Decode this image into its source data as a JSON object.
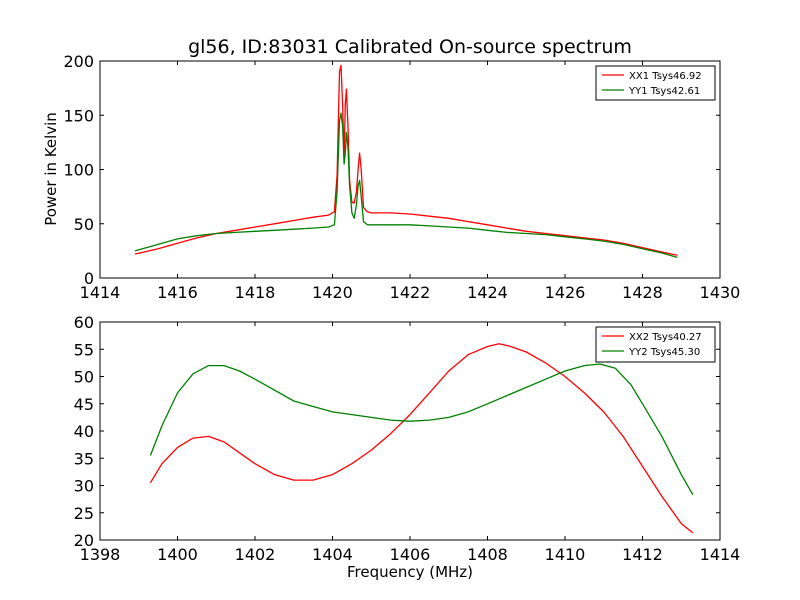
{
  "figure": {
    "title": "gl56, ID:83031 Calibrated On-source spectrum",
    "xlabel": "Frequency (MHz)",
    "ylabel": "Power in Kelvin"
  },
  "chart_data": [
    {
      "type": "line",
      "title": "gl56, ID:83031 Calibrated On-source spectrum",
      "xlabel": "",
      "ylabel": "Power in Kelvin",
      "xlim": [
        1414,
        1430
      ],
      "ylim": [
        0,
        200
      ],
      "xticks": [
        "1414",
        "1416",
        "1418",
        "1420",
        "1422",
        "1424",
        "1426",
        "1428",
        "1430"
      ],
      "yticks": [
        "0",
        "50",
        "100",
        "150",
        "200"
      ],
      "grid": false,
      "legend_position": "top-right",
      "series": [
        {
          "name": "XX1 Tsys46.92",
          "color": "#ff0000",
          "x": [
            1414.9,
            1415.5,
            1416.0,
            1416.5,
            1417.0,
            1417.5,
            1418.0,
            1418.5,
            1419.0,
            1419.5,
            1419.9,
            1420.05,
            1420.12,
            1420.18,
            1420.22,
            1420.26,
            1420.3,
            1420.33,
            1420.36,
            1420.4,
            1420.44,
            1420.5,
            1420.56,
            1420.62,
            1420.66,
            1420.7,
            1420.74,
            1420.8,
            1420.9,
            1421.0,
            1421.2,
            1421.5,
            1422.0,
            1422.5,
            1423.0,
            1423.5,
            1424.0,
            1424.5,
            1425.0,
            1425.5,
            1426.0,
            1426.5,
            1427.0,
            1427.5,
            1428.0,
            1428.5,
            1428.9
          ],
          "y": [
            22,
            27,
            32,
            37,
            41,
            44,
            47,
            50,
            53,
            56,
            58,
            61,
            95,
            190,
            196,
            160,
            110,
            160,
            174,
            140,
            90,
            70,
            69,
            80,
            100,
            115,
            100,
            65,
            61,
            60,
            60,
            60,
            59,
            57,
            55,
            52,
            49,
            46,
            43,
            41,
            39,
            37,
            35,
            32,
            28,
            24,
            21
          ]
        },
        {
          "name": "YY1 Tsys42.61",
          "color": "#008000",
          "x": [
            1414.9,
            1415.5,
            1416.0,
            1416.5,
            1417.0,
            1417.5,
            1418.0,
            1418.5,
            1419.0,
            1419.5,
            1419.9,
            1420.05,
            1420.12,
            1420.18,
            1420.22,
            1420.26,
            1420.3,
            1420.33,
            1420.36,
            1420.4,
            1420.44,
            1420.5,
            1420.56,
            1420.62,
            1420.66,
            1420.7,
            1420.74,
            1420.8,
            1420.9,
            1421.0,
            1421.2,
            1421.5,
            1422.0,
            1422.5,
            1423.0,
            1423.5,
            1424.0,
            1424.5,
            1425.0,
            1425.5,
            1426.0,
            1426.5,
            1427.0,
            1427.5,
            1428.0,
            1428.5,
            1428.9
          ],
          "y": [
            25,
            31,
            36,
            39,
            41,
            42,
            43,
            44,
            45,
            46,
            47,
            49,
            80,
            145,
            152,
            140,
            105,
            115,
            134,
            120,
            85,
            60,
            55,
            68,
            85,
            90,
            75,
            52,
            49,
            49,
            49,
            49,
            49,
            48,
            47,
            46,
            44,
            42,
            41,
            40,
            38,
            36,
            34,
            31,
            27,
            23,
            19
          ]
        }
      ]
    },
    {
      "type": "line",
      "title": "",
      "xlabel": "Frequency (MHz)",
      "ylabel": "",
      "xlim": [
        1398,
        1414
      ],
      "ylim": [
        20,
        60
      ],
      "xticks": [
        "1398",
        "1400",
        "1402",
        "1404",
        "1406",
        "1408",
        "1410",
        "1412",
        "1414"
      ],
      "yticks": [
        "20",
        "25",
        "30",
        "35",
        "40",
        "45",
        "50",
        "55",
        "60"
      ],
      "grid": false,
      "legend_position": "top-right",
      "series": [
        {
          "name": "XX2 Tsys40.27",
          "color": "#ff0000",
          "x": [
            1399.3,
            1399.6,
            1400.0,
            1400.4,
            1400.8,
            1401.2,
            1401.6,
            1402.0,
            1402.5,
            1403.0,
            1403.5,
            1404.0,
            1404.5,
            1405.0,
            1405.5,
            1406.0,
            1406.5,
            1407.0,
            1407.5,
            1408.0,
            1408.3,
            1408.6,
            1409.0,
            1409.5,
            1410.0,
            1410.5,
            1411.0,
            1411.5,
            1412.0,
            1412.5,
            1413.0,
            1413.3
          ],
          "y": [
            30.5,
            34,
            37,
            38.7,
            39,
            38,
            36,
            34,
            32,
            31,
            31,
            32,
            34,
            36.5,
            39.5,
            43,
            47,
            51,
            54,
            55.5,
            56,
            55.5,
            54.5,
            52.5,
            50,
            47,
            43.5,
            39,
            33.5,
            28,
            23,
            21.3
          ]
        },
        {
          "name": "YY2 Tsys45.30",
          "color": "#008000",
          "x": [
            1399.3,
            1399.6,
            1400.0,
            1400.4,
            1400.8,
            1401.2,
            1401.6,
            1402.0,
            1402.5,
            1403.0,
            1403.5,
            1404.0,
            1404.5,
            1405.0,
            1405.5,
            1406.0,
            1406.5,
            1407.0,
            1407.5,
            1408.0,
            1408.5,
            1409.0,
            1409.5,
            1410.0,
            1410.5,
            1410.9,
            1411.3,
            1411.7,
            1412.0,
            1412.5,
            1413.0,
            1413.3
          ],
          "y": [
            35.5,
            41,
            47,
            50.5,
            52,
            52,
            51,
            49.5,
            47.5,
            45.5,
            44.5,
            43.5,
            43,
            42.5,
            42,
            41.8,
            42,
            42.5,
            43.5,
            45,
            46.5,
            48,
            49.5,
            51,
            52,
            52.3,
            51.5,
            48.5,
            45,
            39,
            32,
            28.3
          ]
        }
      ]
    }
  ]
}
